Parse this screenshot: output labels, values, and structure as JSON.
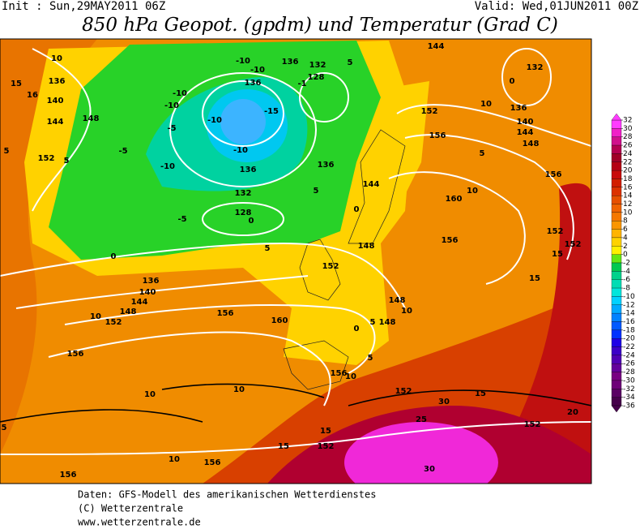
{
  "header": {
    "init": "Init : Sun,29MAY2011 06Z",
    "valid": "Valid: Wed,01JUN2011 00Z",
    "title": "850 hPa Geopot. (gpdm) und Temperatur (Grad C)"
  },
  "map": {
    "contour_labels": [
      "10",
      "15",
      "136",
      "16",
      "140",
      "144",
      "148",
      "152",
      "5",
      "5",
      "-5",
      "-5",
      "-10",
      "-10",
      "-10",
      "-10",
      "-5",
      "-10",
      "-10",
      "136",
      "-15",
      "-10",
      "136",
      "132",
      "128",
      "-1",
      "5",
      "136",
      "132",
      "128",
      "0",
      "136",
      "5",
      "0",
      "144",
      "152",
      "156",
      "160",
      "10",
      "156",
      "144",
      "132",
      "0",
      "10",
      "136",
      "140",
      "144",
      "148",
      "5",
      "156",
      "152",
      "152",
      "15",
      "15",
      "148",
      "152",
      "148",
      "10",
      "148",
      "5",
      "0",
      "5",
      "156",
      "10",
      "152",
      "30",
      "15",
      "25",
      "152",
      "20",
      "30",
      "15",
      "152",
      "15",
      "156",
      "10",
      "10",
      "10",
      "156",
      "156",
      "152",
      "10",
      "148",
      "144",
      "140",
      "136",
      "0",
      "156",
      "160",
      "5",
      "5"
    ],
    "colorbar": {
      "ticks": [
        32,
        30,
        28,
        26,
        24,
        22,
        20,
        18,
        16,
        14,
        12,
        10,
        8,
        6,
        4,
        2,
        0,
        -2,
        -4,
        -6,
        -8,
        -10,
        -12,
        -14,
        -16,
        -18,
        -20,
        -22,
        -24,
        -26,
        -28,
        -30,
        -32,
        -34,
        -36
      ],
      "colors": [
        "#ff3cff",
        "#f020c8",
        "#d0108c",
        "#b40050",
        "#a00028",
        "#b40014",
        "#c80a0a",
        "#d21e00",
        "#dc3200",
        "#e65000",
        "#f06400",
        "#f57800",
        "#fa9600",
        "#ffb400",
        "#ffd200",
        "#fff000",
        "#64e614",
        "#00c850",
        "#00d28c",
        "#00dcb4",
        "#00e6dc",
        "#00d2ff",
        "#00aaff",
        "#0082ff",
        "#005aff",
        "#0032ff",
        "#1e00e6",
        "#3c00c8",
        "#5000b4",
        "#64009b",
        "#780082",
        "#6e0078",
        "#5a0064",
        "#46004b"
      ]
    }
  },
  "footer": {
    "line1": "Daten: GFS-Modell des amerikanischen Wetterdienstes",
    "line2": "(C) Wetterzentrale",
    "line3": "www.wetterzentrale.de"
  }
}
